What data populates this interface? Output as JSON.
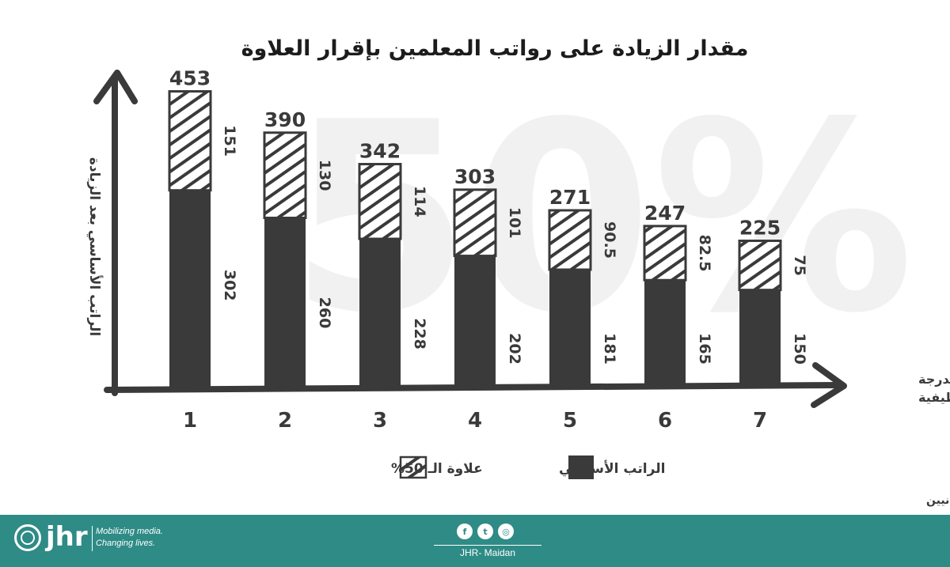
{
  "chart_data": {
    "type": "bar",
    "stacked": true,
    "title": "مقدار الزيادة على رواتب المعلمين بإقرار العلاوة",
    "watermark": "50%",
    "ylabel": "الراتب الأساسي بعد الزيادة",
    "xlabel_line1": "الدرجة",
    "xlabel_line2": "الوظيفية",
    "categories": [
      "1",
      "2",
      "3",
      "4",
      "5",
      "6",
      "7"
    ],
    "series": [
      {
        "name": "الراتب الأساسي",
        "values": [
          302,
          260,
          228,
          202,
          181,
          165,
          150
        ],
        "color": "#3a3a3a",
        "pattern": "solid"
      },
      {
        "name": "علاوة الـ 50%",
        "values": [
          151,
          130,
          114,
          101,
          90.5,
          82.5,
          75
        ],
        "color": "#3a3a3a",
        "pattern": "hatched"
      }
    ],
    "base_labels": [
      "302",
      "260",
      "228",
      "202",
      "181",
      "165",
      "150"
    ],
    "raise_labels": [
      "151",
      "130",
      "114",
      "101",
      "90.5",
      "82.5",
      "75"
    ],
    "totals": [
      "453",
      "390",
      "342",
      "303",
      "271",
      "247",
      "225"
    ],
    "ylim": [
      0,
      520
    ]
  },
  "legend": {
    "base": "الراتب الأساسي",
    "raise": "علاوة الـ 50%"
  },
  "source": "*المصدر: نقابة المعلمين الأردنيين",
  "footer": {
    "logo": "jhr",
    "tagline_1": "Mobilizing media.",
    "tagline_2": "Changing lives.",
    "brand": "JHR- Maidan",
    "social": [
      "f",
      "t",
      "◎"
    ]
  },
  "colors": {
    "dark": "#3a3a3a",
    "footer_bg": "#2e8b86",
    "watermark": "#f1f1f1"
  }
}
